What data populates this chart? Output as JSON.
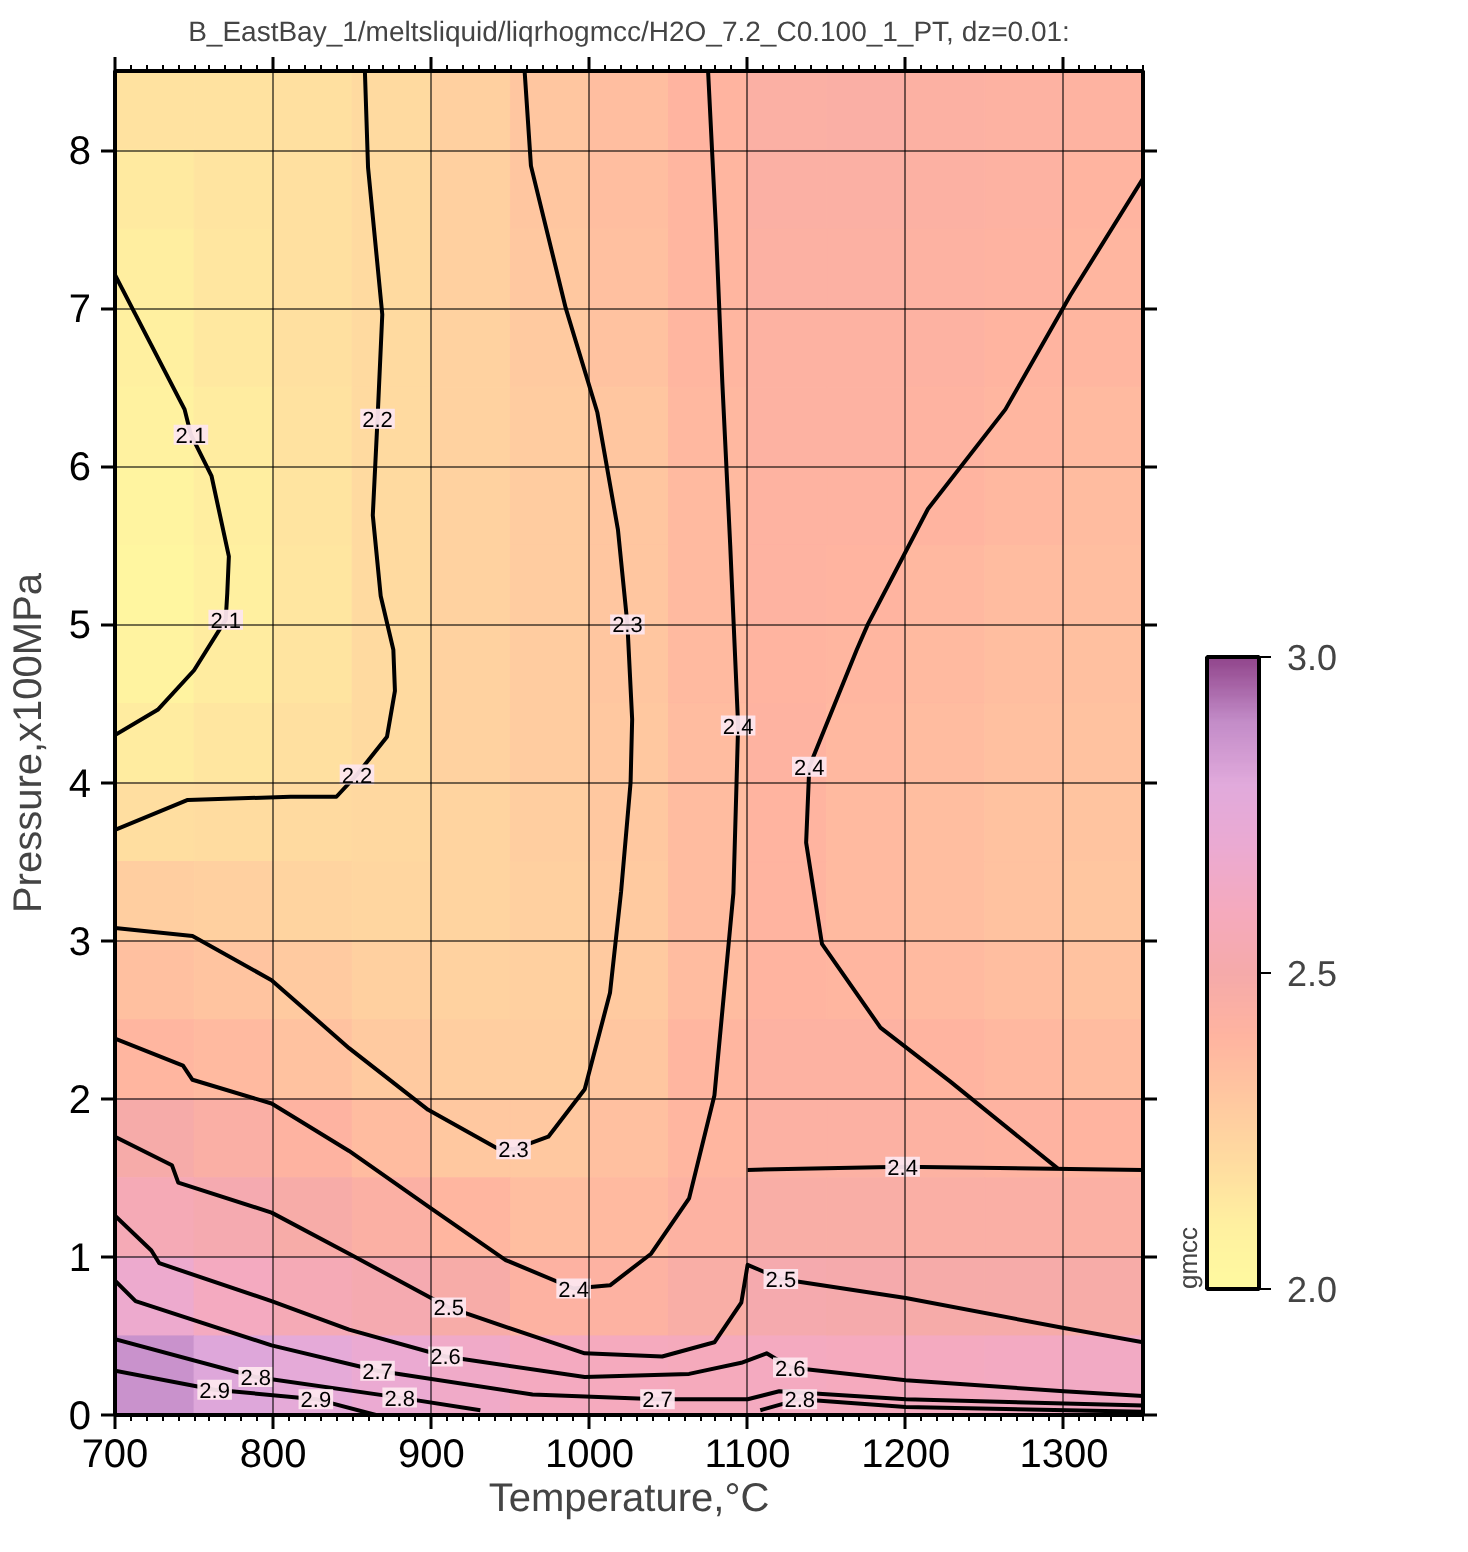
{
  "chart_data": {
    "type": "scatter",
    "title": "B_EastBay_1/meltsliquid/liqrhogmcc/H2O_7.2_C0.100_1_PT, dz=0.01:",
    "xlabel": "Temperature,°C",
    "ylabel": "Pressure,x100MPa",
    "clabel": "gmcc",
    "clim": [
      2.0,
      3.0
    ],
    "cticks": [
      {
        "value": 2.0,
        "label": "2.0"
      },
      2.5,
      {
        "value": 3.0,
        "label": "3.0"
      }
    ],
    "xlim": [
      700,
      1350
    ],
    "ylim": [
      0,
      8.5
    ],
    "xticks": [
      700,
      800,
      900,
      1000,
      1100,
      1200,
      1300
    ],
    "yticks": [
      0,
      1,
      2,
      3,
      4,
      5,
      6,
      7,
      8
    ],
    "grid": true,
    "series": [
      {
        "marker": "square",
        "x": [
          725,
          775,
          825,
          875,
          925,
          975,
          1025,
          1075,
          1125,
          1175,
          1225,
          1275,
          1325,
          725,
          775,
          825,
          875,
          925,
          975,
          1025,
          1075,
          1125,
          1175,
          1225,
          1275,
          1325,
          725,
          775,
          825,
          875,
          925,
          975,
          1025,
          1075,
          1125,
          1175,
          1225,
          1275,
          1325,
          725,
          775,
          825,
          875,
          925,
          975,
          1025,
          1075,
          1125,
          1175,
          1225,
          1275,
          1325,
          725,
          775,
          825,
          875,
          925,
          975,
          1025,
          1075,
          1125,
          1175,
          1225,
          1275,
          1325,
          725,
          775,
          825,
          875,
          925,
          975,
          1025,
          1075,
          1125,
          1175,
          1225,
          1275,
          1325,
          725,
          775,
          825,
          875,
          925,
          975,
          1025,
          1075,
          1125,
          1175,
          1225,
          1275,
          1325,
          725,
          775,
          825,
          875,
          925,
          975,
          1025,
          1075,
          1125,
          1175,
          1225,
          1275,
          1325,
          725,
          775,
          825,
          875,
          925,
          975,
          1025,
          1075,
          1125,
          1175,
          1225,
          1275,
          1325,
          725,
          775,
          825,
          875,
          925,
          975,
          1025,
          1075,
          1125,
          1175,
          1225,
          1275,
          1325,
          725,
          775,
          825,
          875,
          925,
          975,
          1025,
          1075,
          1125,
          1175,
          1225,
          1275,
          1325,
          725,
          775,
          825,
          875,
          925,
          975,
          1025,
          1075,
          1125,
          1175,
          1225,
          1275,
          1325,
          725,
          775,
          825,
          875,
          925,
          975,
          1025,
          1075,
          1125,
          1175,
          1225,
          1275,
          1325,
          725,
          775,
          825,
          875,
          925,
          975,
          1025,
          1075,
          1125,
          1175,
          1225,
          1275,
          1325,
          725,
          775,
          825,
          875,
          925,
          975,
          1025,
          1075,
          1125,
          1175,
          1225,
          1275,
          1325,
          725,
          775,
          825,
          875,
          925,
          975,
          1025,
          1075,
          1125,
          1175,
          1225,
          1275,
          1325,
          725,
          775,
          825,
          875,
          925,
          975,
          1025,
          1075,
          1125,
          1175,
          1225,
          1275,
          1325
        ],
        "values": [
          8.25,
          8.25,
          8.25,
          8.25,
          8.25,
          8.25,
          8.25,
          8.25,
          8.25,
          8.25,
          8.25,
          8.25,
          8.25,
          7.75,
          7.75,
          7.75,
          7.75,
          7.75,
          7.75,
          7.75,
          7.75,
          7.75,
          7.75,
          7.75,
          7.75,
          7.75,
          7.25,
          7.25,
          7.25,
          7.25,
          7.25,
          7.25,
          7.25,
          7.25,
          7.25,
          7.25,
          7.25,
          7.25,
          7.25,
          6.75,
          6.75,
          6.75,
          6.75,
          6.75,
          6.75,
          6.75,
          6.75,
          6.75,
          6.75,
          6.75,
          6.75,
          6.75,
          6.25,
          6.25,
          6.25,
          6.25,
          6.25,
          6.25,
          6.25,
          6.25,
          6.25,
          6.25,
          6.25,
          6.25,
          6.25,
          5.75,
          5.75,
          5.75,
          5.75,
          5.75,
          5.75,
          5.75,
          5.75,
          5.75,
          5.75,
          5.75,
          5.75,
          5.75,
          5.25,
          5.25,
          5.25,
          5.25,
          5.25,
          5.25,
          5.25,
          5.25,
          5.25,
          5.25,
          5.25,
          5.25,
          5.25,
          4.75,
          4.75,
          4.75,
          4.75,
          4.75,
          4.75,
          4.75,
          4.75,
          4.75,
          4.75,
          4.75,
          4.75,
          4.75,
          4.25,
          4.25,
          4.25,
          4.25,
          4.25,
          4.25,
          4.25,
          4.25,
          4.25,
          4.25,
          4.25,
          4.25,
          4.25,
          3.75,
          3.75,
          3.75,
          3.75,
          3.75,
          3.75,
          3.75,
          3.75,
          3.75,
          3.75,
          3.75,
          3.75,
          3.75,
          3.25,
          3.25,
          3.25,
          3.25,
          3.25,
          3.25,
          3.25,
          3.25,
          3.25,
          3.25,
          3.25,
          3.25,
          3.25,
          2.75,
          2.75,
          2.75,
          2.75,
          2.75,
          2.75,
          2.75,
          2.75,
          2.75,
          2.75,
          2.75,
          2.75,
          2.75,
          2.25,
          2.25,
          2.25,
          2.25,
          2.25,
          2.25,
          2.25,
          2.25,
          2.25,
          2.25,
          2.25,
          2.25,
          2.25,
          1.75,
          1.75,
          1.75,
          1.75,
          1.75,
          1.75,
          1.75,
          1.75,
          1.75,
          1.75,
          1.75,
          1.75,
          1.75,
          1.25,
          1.25,
          1.25,
          1.25,
          1.25,
          1.25,
          1.25,
          1.25,
          1.25,
          1.25,
          1.25,
          1.25,
          1.25,
          0.75,
          0.75,
          0.75,
          0.75,
          0.75,
          0.75,
          0.75,
          0.75,
          0.75,
          0.75,
          0.75,
          0.75,
          0.75,
          0.25,
          0.25,
          0.25,
          0.25,
          0.25,
          0.25,
          0.25,
          0.25,
          0.25,
          0.25,
          0.25,
          0.25,
          0.25
        ],
        "cvalues": [
          2.17,
          2.17,
          2.18,
          2.21,
          2.26,
          2.31,
          2.35,
          2.4,
          2.44,
          2.45,
          2.43,
          2.42,
          2.41,
          2.13,
          2.16,
          2.18,
          2.21,
          2.26,
          2.31,
          2.35,
          2.39,
          2.44,
          2.44,
          2.43,
          2.42,
          2.4,
          2.11,
          2.15,
          2.18,
          2.21,
          2.26,
          2.3,
          2.34,
          2.39,
          2.43,
          2.43,
          2.42,
          2.41,
          2.39,
          2.1,
          2.14,
          2.18,
          2.21,
          2.25,
          2.29,
          2.33,
          2.39,
          2.42,
          2.42,
          2.42,
          2.4,
          2.39,
          2.08,
          2.12,
          2.17,
          2.21,
          2.25,
          2.28,
          2.31,
          2.38,
          2.42,
          2.42,
          2.41,
          2.39,
          2.37,
          2.06,
          2.11,
          2.16,
          2.21,
          2.25,
          2.28,
          2.31,
          2.37,
          2.41,
          2.41,
          2.4,
          2.38,
          2.36,
          2.04,
          2.1,
          2.15,
          2.21,
          2.25,
          2.28,
          2.31,
          2.37,
          2.41,
          2.4,
          2.38,
          2.36,
          2.35,
          2.07,
          2.12,
          2.16,
          2.21,
          2.25,
          2.28,
          2.31,
          2.37,
          2.4,
          2.39,
          2.37,
          2.35,
          2.34,
          2.12,
          2.15,
          2.18,
          2.21,
          2.25,
          2.28,
          2.3,
          2.36,
          2.41,
          2.38,
          2.36,
          2.34,
          2.33,
          2.19,
          2.2,
          2.21,
          2.22,
          2.24,
          2.27,
          2.3,
          2.36,
          2.4,
          2.37,
          2.35,
          2.33,
          2.32,
          2.27,
          2.26,
          2.24,
          2.23,
          2.24,
          2.26,
          2.29,
          2.36,
          2.4,
          2.37,
          2.35,
          2.33,
          2.31,
          2.34,
          2.32,
          2.29,
          2.26,
          2.25,
          2.26,
          2.29,
          2.36,
          2.4,
          2.39,
          2.37,
          2.35,
          2.33,
          2.39,
          2.37,
          2.33,
          2.29,
          2.27,
          2.27,
          2.31,
          2.39,
          2.42,
          2.42,
          2.4,
          2.38,
          2.36,
          2.49,
          2.45,
          2.41,
          2.36,
          2.3,
          2.3,
          2.34,
          2.39,
          2.43,
          2.43,
          2.42,
          2.41,
          2.4,
          2.56,
          2.53,
          2.48,
          2.44,
          2.39,
          2.35,
          2.37,
          2.42,
          2.46,
          2.46,
          2.45,
          2.45,
          2.44,
          2.68,
          2.61,
          2.56,
          2.53,
          2.48,
          2.42,
          2.42,
          2.46,
          2.52,
          2.51,
          2.49,
          2.49,
          2.48,
          2.88,
          2.81,
          2.76,
          2.7,
          2.65,
          2.61,
          2.6,
          2.59,
          2.61,
          2.6,
          2.61,
          2.62,
          2.63
        ],
        "colors": [
          "#ffe2a0",
          "#ffe2a0",
          "#ffe0a0",
          "#ffdaa0",
          "#ffd0a0",
          "#ffc6a0",
          "#ffbea0",
          "#ffb4a0",
          "#fbb0a4",
          "#faafa5",
          "#fcb1a3",
          "#fdb2a2",
          "#feb3a1",
          "#ffeaa0",
          "#ffe4a0",
          "#ffe0a0",
          "#ffdaa0",
          "#ffd0a0",
          "#ffc6a0",
          "#ffbea0",
          "#ffb6a0",
          "#fbb0a4",
          "#fbb0a4",
          "#fcb1a3",
          "#fdb2a2",
          "#ffb4a0",
          "#ffeea0",
          "#ffe6a0",
          "#ffe0a0",
          "#ffdaa0",
          "#ffd0a0",
          "#ffc8a0",
          "#ffc0a0",
          "#ffb6a0",
          "#fcb1a3",
          "#fcb1a3",
          "#fdb2a2",
          "#feb3a1",
          "#ffb6a0",
          "#fff0a0",
          "#ffe8a0",
          "#ffe0a0",
          "#ffdaa0",
          "#ffd2a0",
          "#ffcaa0",
          "#ffc2a0",
          "#ffb6a0",
          "#fdb2a2",
          "#fdb2a2",
          "#fdb2a2",
          "#ffb4a0",
          "#ffb6a0",
          "#fff2a0",
          "#ffeca0",
          "#ffe2a0",
          "#ffdaa0",
          "#ffd2a0",
          "#ffcca0",
          "#ffc6a0",
          "#ffb8a0",
          "#fdb2a2",
          "#fdb2a2",
          "#feb3a1",
          "#ffb6a0",
          "#ffbaa0",
          "#fff4a0",
          "#ffeea0",
          "#ffe4a0",
          "#ffdaa0",
          "#ffd2a0",
          "#ffcca0",
          "#ffc6a0",
          "#ffbaa0",
          "#feb3a1",
          "#feb3a1",
          "#ffb4a0",
          "#ffb8a0",
          "#ffbca0",
          "#fff6a0",
          "#fff0a0",
          "#ffe6a0",
          "#ffdaa0",
          "#ffd2a0",
          "#ffcca0",
          "#ffc6a0",
          "#ffbaa0",
          "#feb3a1",
          "#ffb4a0",
          "#ffb8a0",
          "#ffbca0",
          "#ffbea0",
          "#fff3a0",
          "#ffeca0",
          "#ffe4a0",
          "#ffdaa0",
          "#ffd2a0",
          "#ffcca0",
          "#ffc6a0",
          "#ffbaa0",
          "#ffb4a0",
          "#ffb6a0",
          "#ffbaa0",
          "#ffbea0",
          "#ffc0a0",
          "#ffeca0",
          "#ffe6a0",
          "#ffe0a0",
          "#ffdaa0",
          "#ffd2a0",
          "#ffcca0",
          "#ffc8a0",
          "#ffbca0",
          "#feb3a1",
          "#ffb8a0",
          "#ffbca0",
          "#ffc0a0",
          "#ffc2a0",
          "#ffdea0",
          "#ffdca0",
          "#ffdaa0",
          "#ffd8a0",
          "#ffd4a0",
          "#ffcea0",
          "#ffc8a0",
          "#ffbca0",
          "#ffb4a0",
          "#ffbaa0",
          "#ffbea0",
          "#ffc2a0",
          "#ffc4a0",
          "#ffcea0",
          "#ffd0a0",
          "#ffd4a0",
          "#ffd6a0",
          "#ffd4a0",
          "#ffd0a0",
          "#ffcaa0",
          "#ffbca0",
          "#ffb4a0",
          "#ffbaa0",
          "#ffbea0",
          "#ffc2a0",
          "#ffc6a0",
          "#ffc0a0",
          "#ffc4a0",
          "#ffcaa0",
          "#ffd0a0",
          "#ffd2a0",
          "#ffd0a0",
          "#ffcaa0",
          "#ffbca0",
          "#ffb4a0",
          "#ffb6a0",
          "#ffbaa0",
          "#ffbea0",
          "#ffc2a0",
          "#ffb6a0",
          "#ffbaa0",
          "#ffc2a0",
          "#ffcaa0",
          "#ffcea0",
          "#ffcea0",
          "#ffc6a0",
          "#ffb6a0",
          "#fdb2a2",
          "#fdb2a2",
          "#ffb4a0",
          "#ffb8a0",
          "#ffbca0",
          "#f6aba9",
          "#faafa5",
          "#feb3a1",
          "#ffbca0",
          "#ffc8a0",
          "#ffc8a0",
          "#ffc0a0",
          "#ffb6a0",
          "#fcb1a3",
          "#fcb1a3",
          "#fdb2a2",
          "#feb3a1",
          "#ffb4a0",
          "#f5aab6",
          "#f5aab0",
          "#f7aca8",
          "#fbb0a4",
          "#ffb6a0",
          "#ffbea0",
          "#ffbaa0",
          "#fdb2a2",
          "#f9aea6",
          "#f9aea6",
          "#faafa5",
          "#faafa5",
          "#fbb0a4",
          "#edaace",
          "#f4aac0",
          "#f5aab6",
          "#f5aab0",
          "#f7aca8",
          "#fdb2a2",
          "#fdb2a2",
          "#f9aea6",
          "#f5aaae",
          "#f5aaac",
          "#f6aba9",
          "#f6aba9",
          "#f7aca8",
          "#c992cc",
          "#dea7da",
          "#e5aad8",
          "#ebaad2",
          "#f0aac8",
          "#f4aac0",
          "#f5aabe",
          "#f5aabc",
          "#f4aac0",
          "#f5aabe",
          "#f4aac0",
          "#f3aac2",
          "#f2aac4"
        ]
      },
      {
        "type": "line",
        "color": "#000000",
        "x": [
          700,
          744,
          748,
          761,
          772,
          771,
          770,
          750,
          727,
          700
        ],
        "values": [
          7.21,
          6.36,
          6.2,
          5.94,
          5.43,
          5.2,
          5.03,
          4.71,
          4.46,
          4.3
        ]
      },
      {
        "type": "line",
        "color": "#000000",
        "x": [
          858,
          860,
          869,
          866,
          863,
          868,
          876,
          877,
          872,
          853,
          840,
          811,
          746,
          700
        ],
        "values": [
          8.5,
          7.89,
          6.96,
          6.3,
          5.69,
          5.18,
          4.84,
          4.58,
          4.29,
          4.05,
          3.91,
          3.91,
          3.89,
          3.7
        ]
      },
      {
        "type": "line",
        "color": "#000000",
        "x": [
          959,
          963,
          985,
          1005,
          1018,
          1024,
          1027,
          1026,
          1020,
          1013,
          997,
          974,
          952,
          941,
          898,
          848,
          799,
          749,
          700
        ],
        "values": [
          8.5,
          7.9,
          7.0,
          6.34,
          5.6,
          5.0,
          4.4,
          4.0,
          3.31,
          2.67,
          2.06,
          1.76,
          1.68,
          1.69,
          1.93,
          2.32,
          2.75,
          3.03,
          3.08
        ]
      },
      {
        "type": "line",
        "color": "#000000",
        "x": [
          1075,
          1080,
          1084,
          1089,
          1094,
          1093,
          1091,
          1079,
          1063,
          1039,
          1013,
          990,
          947,
          898,
          848,
          799,
          749,
          743,
          700
        ],
        "values": [
          8.5,
          7.5,
          6.53,
          5.5,
          4.36,
          4.0,
          3.3,
          2.02,
          1.37,
          1.02,
          0.82,
          0.8,
          0.98,
          1.32,
          1.67,
          1.97,
          2.12,
          2.21,
          2.38
        ]
      },
      {
        "type": "line",
        "color": "#000000",
        "x": [
          1350,
          1304,
          1263,
          1214,
          1176,
          1169,
          1139,
          1137,
          1147,
          1184,
          1228,
          1296
        ],
        "values": [
          7.82,
          7.08,
          6.36,
          5.73,
          5.0,
          4.84,
          4.1,
          3.62,
          2.98,
          2.45,
          2.11,
          1.56
        ]
      },
      {
        "type": "line",
        "color": "#000000",
        "x": [
          1100,
          1198,
          1350
        ],
        "values": [
          1.55,
          1.57,
          1.55
        ]
      },
      {
        "type": "line",
        "color": "#000000",
        "x": [
          700,
          736,
          740,
          799,
          848,
          911,
          964,
          997,
          1046,
          1079,
          1096,
          1100,
          1121,
          1200,
          1300,
          1350
        ],
        "values": [
          1.76,
          1.58,
          1.47,
          1.28,
          1.02,
          0.68,
          0.5,
          0.39,
          0.37,
          0.46,
          0.71,
          0.95,
          0.86,
          0.74,
          0.55,
          0.46
        ]
      },
      {
        "type": "line",
        "color": "#000000",
        "x": [
          700,
          723,
          728,
          799,
          848,
          909,
          997,
          1063,
          1096,
          1112,
          1127,
          1200,
          1300,
          1350
        ],
        "values": [
          1.26,
          1.04,
          0.96,
          0.72,
          0.54,
          0.37,
          0.24,
          0.26,
          0.33,
          0.39,
          0.3,
          0.22,
          0.15,
          0.12
        ]
      },
      {
        "type": "line",
        "color": "#000000",
        "x": [
          700,
          713,
          799,
          866,
          964,
          1043,
          1100,
          1120,
          1200,
          1350
        ],
        "values": [
          0.85,
          0.72,
          0.44,
          0.28,
          0.13,
          0.1,
          0.1,
          0.15,
          0.1,
          0.06
        ]
      },
      {
        "type": "line",
        "color": "#000000",
        "x": [
          700,
          789,
          880,
          931
        ],
        "values": [
          0.48,
          0.24,
          0.11,
          0.03
        ]
      },
      {
        "type": "line",
        "color": "#000000",
        "x": [
          1108,
          1133,
          1200,
          1350
        ],
        "values": [
          0.03,
          0.1,
          0.05,
          0.02
        ]
      },
      {
        "type": "line",
        "color": "#000000",
        "x": [
          700,
          763,
          827,
          865
        ],
        "values": [
          0.28,
          0.16,
          0.1,
          0.0
        ]
      }
    ],
    "annotations": [
      {
        "text": "2.1",
        "x": 748,
        "y": 6.2
      },
      {
        "text": "2.1",
        "x": 770,
        "y": 5.03
      },
      {
        "text": "2.2",
        "x": 866,
        "y": 6.3
      },
      {
        "text": "2.2",
        "x": 853,
        "y": 4.05
      },
      {
        "text": "2.3",
        "x": 1024,
        "y": 5.0
      },
      {
        "text": "2.3",
        "x": 952,
        "y": 1.68
      },
      {
        "text": "2.4",
        "x": 1094,
        "y": 4.36
      },
      {
        "text": "2.4",
        "x": 990,
        "y": 0.8
      },
      {
        "text": "2.4",
        "x": 1139,
        "y": 4.1
      },
      {
        "text": "2.4",
        "x": 1198,
        "y": 1.57
      },
      {
        "text": "2.5",
        "x": 911,
        "y": 0.68
      },
      {
        "text": "2.5",
        "x": 1121,
        "y": 0.86
      },
      {
        "text": "2.6",
        "x": 909,
        "y": 0.37
      },
      {
        "text": "2.6",
        "x": 1127,
        "y": 0.3
      },
      {
        "text": "2.7",
        "x": 866,
        "y": 0.28
      },
      {
        "text": "2.7",
        "x": 1043,
        "y": 0.1
      },
      {
        "text": "2.8",
        "x": 789,
        "y": 0.24
      },
      {
        "text": "2.8",
        "x": 880,
        "y": 0.11
      },
      {
        "text": "2.8",
        "x": 1133,
        "y": 0.1
      },
      {
        "text": "2.9",
        "x": 763,
        "y": 0.16
      },
      {
        "text": "2.9",
        "x": 827,
        "y": 0.1
      }
    ]
  }
}
